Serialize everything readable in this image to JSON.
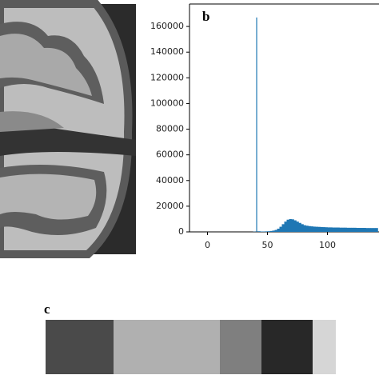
{
  "chart_data": {
    "type": "histogram",
    "panel_label": "b",
    "color": "#1f77b4",
    "bins": [
      38,
      40,
      42,
      44,
      46,
      48,
      50,
      52,
      54,
      56,
      58,
      60,
      62,
      64,
      66,
      68,
      70,
      72,
      74,
      76,
      78,
      80,
      82,
      84,
      86,
      88,
      90,
      92,
      94,
      96,
      98,
      100,
      102,
      104,
      106,
      108,
      110,
      112,
      114,
      116,
      118,
      120,
      122,
      124,
      126,
      128,
      130,
      132,
      134,
      136,
      138,
      140,
      142
    ],
    "counts": [
      200,
      167000,
      500,
      300,
      300,
      400,
      500,
      700,
      1000,
      1500,
      2500,
      4000,
      6000,
      8000,
      9500,
      10000,
      9800,
      9000,
      8000,
      7000,
      6000,
      5200,
      4800,
      4500,
      4300,
      4100,
      4000,
      3900,
      3800,
      3700,
      3600,
      3500,
      3500,
      3400,
      3400,
      3400,
      3300,
      3300,
      3300,
      3200,
      3200,
      3200,
      3200,
      3100,
      3100,
      3100,
      3100,
      3000,
      3000,
      3000,
      3000,
      3000
    ],
    "xlim": [
      -15,
      143
    ],
    "xticks": [
      0,
      50,
      100
    ],
    "ylim": [
      0,
      177500
    ],
    "yticks": [
      0,
      20000,
      40000,
      60000,
      80000,
      100000,
      120000,
      140000,
      160000
    ]
  },
  "strip": {
    "panel_label": "c"
  }
}
